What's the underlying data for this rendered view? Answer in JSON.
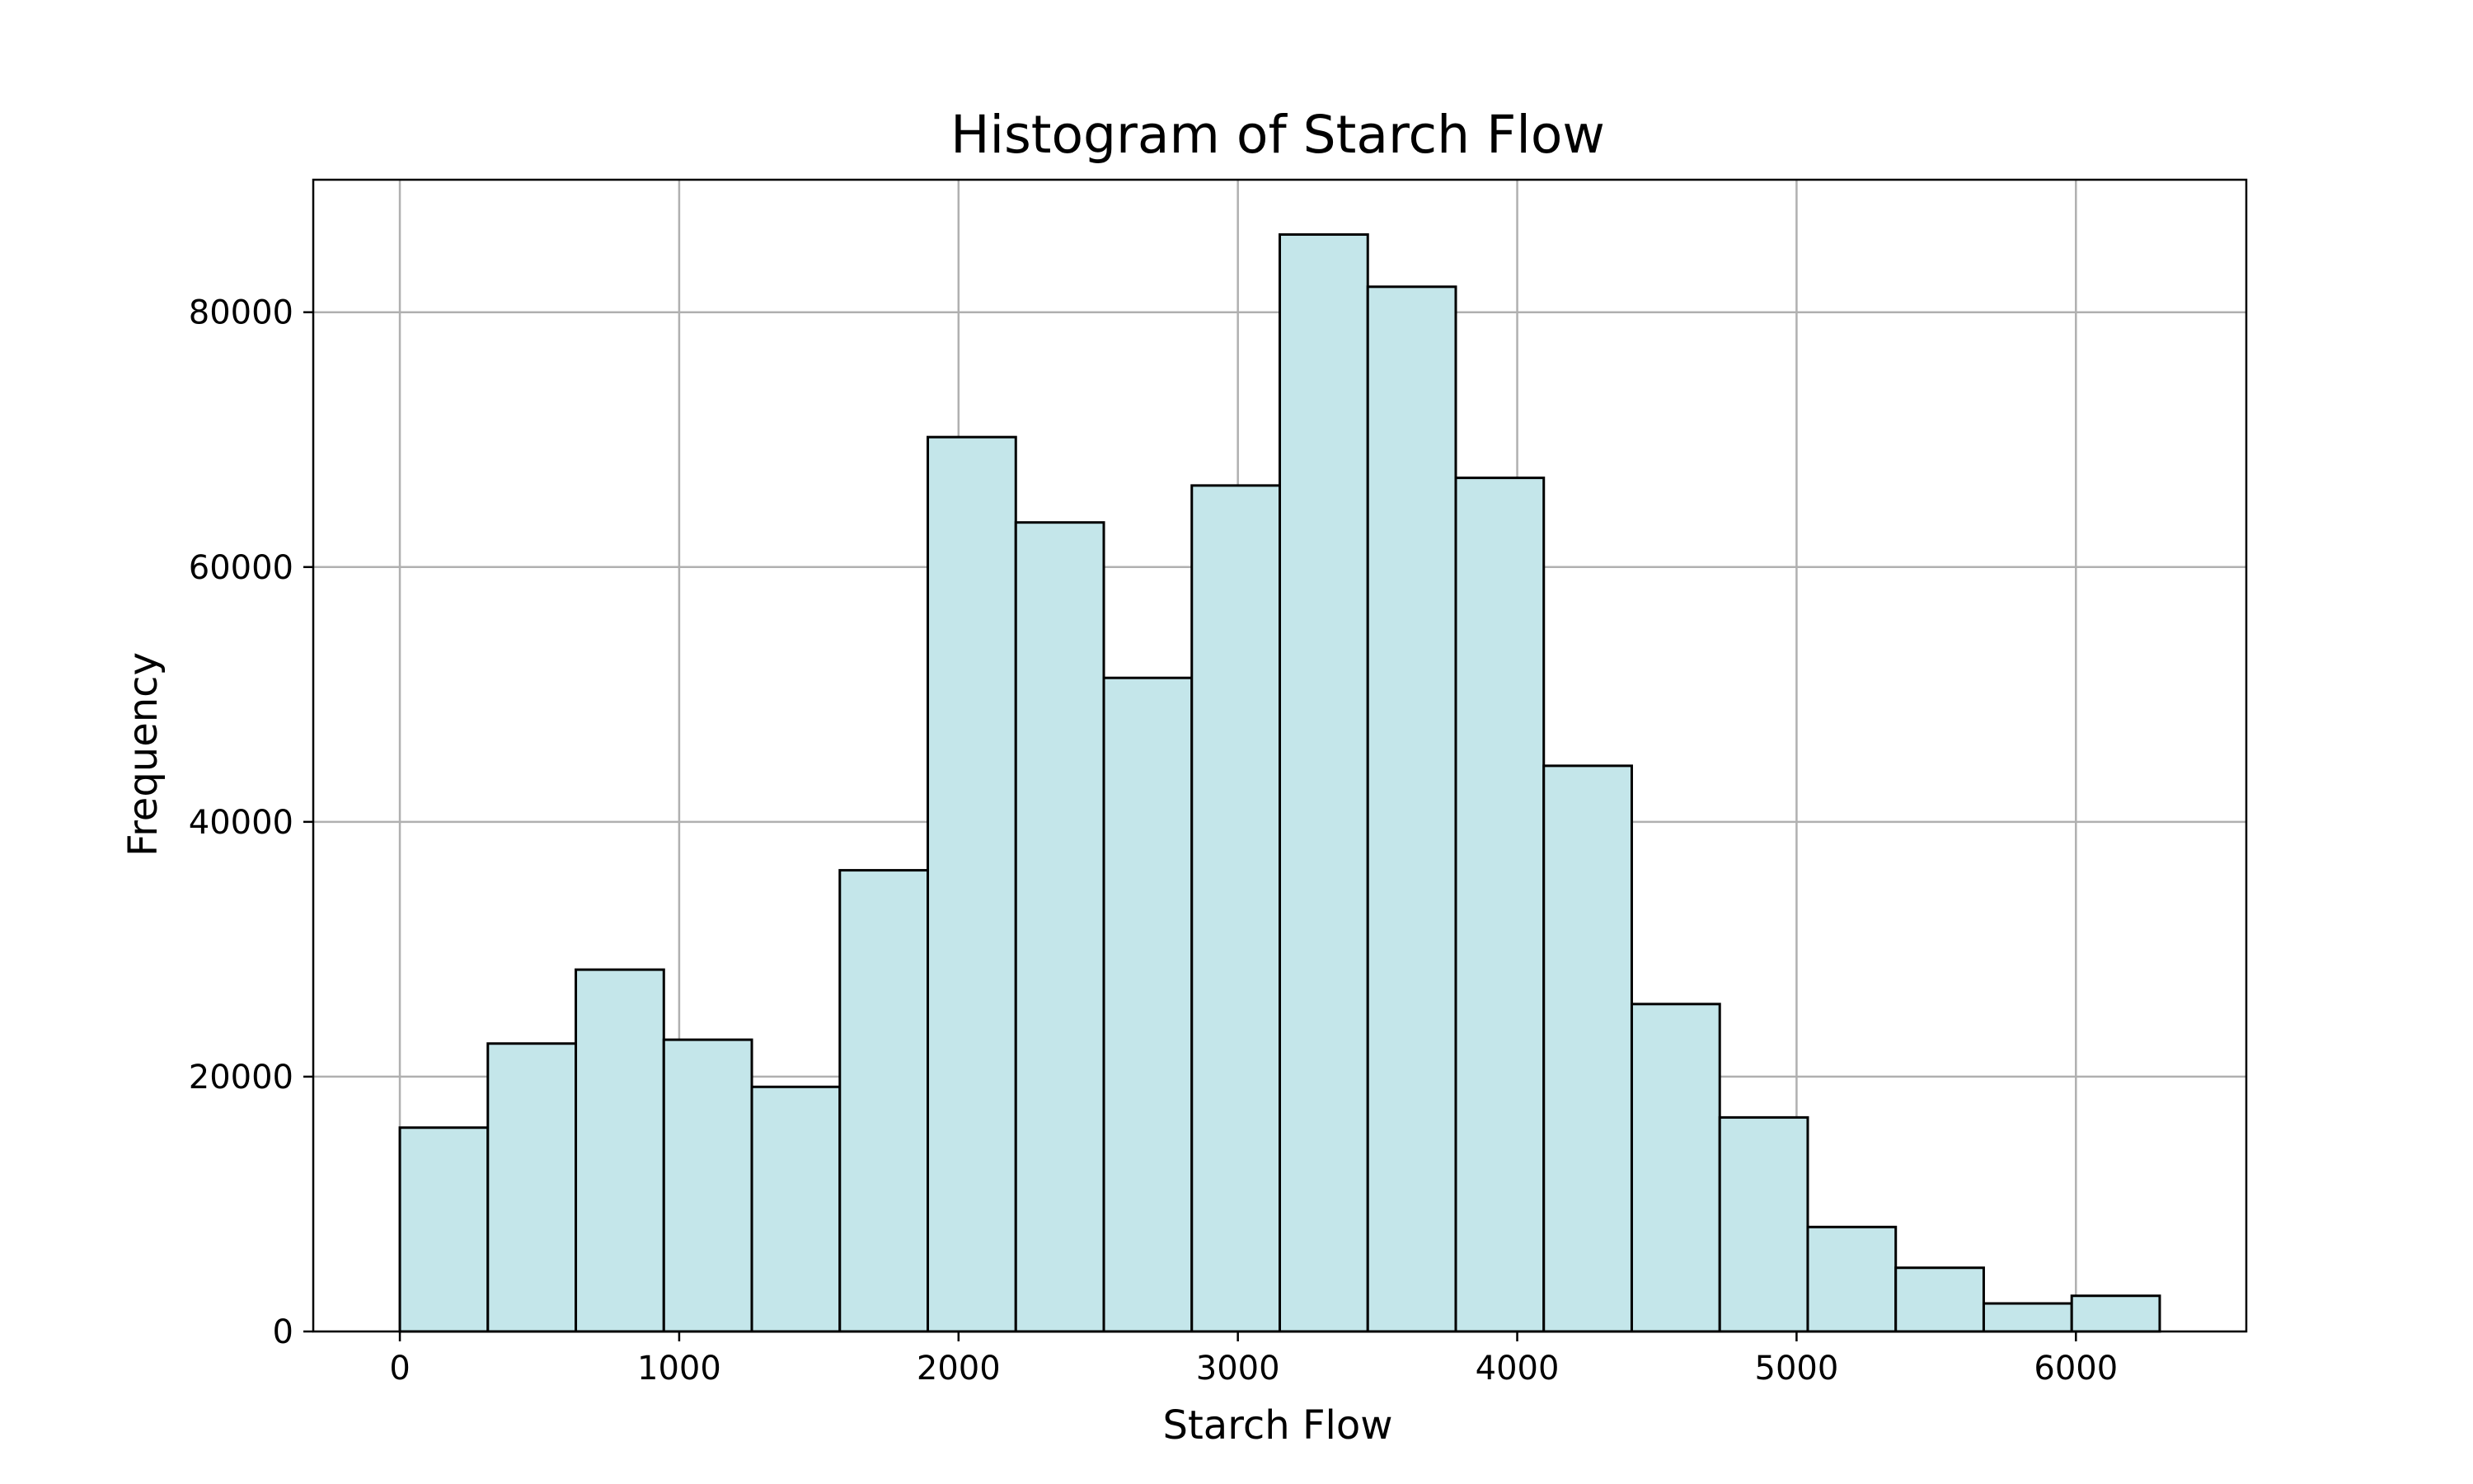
{
  "chart_data": {
    "type": "bar",
    "title": "Histogram of Starch Flow",
    "xlabel": "Starch Flow",
    "ylabel": "Frequency",
    "bin_edges": [
      0,
      315,
      630,
      945,
      1260,
      1575,
      1890,
      2205,
      2520,
      2835,
      3150,
      3465,
      3780,
      4095,
      4410,
      4725,
      5040,
      5355,
      5670,
      5985,
      6300
    ],
    "values": [
      16000,
      22600,
      28400,
      22900,
      19200,
      36200,
      70200,
      63500,
      51300,
      66400,
      86100,
      82000,
      67000,
      44400,
      25700,
      16800,
      8200,
      5000,
      2200,
      2800
    ],
    "xlim": [
      -310,
      6610
    ],
    "ylim": [
      0,
      90400
    ],
    "xticks": [
      0,
      1000,
      2000,
      3000,
      4000,
      5000,
      6000
    ],
    "yticks": [
      0,
      20000,
      40000,
      60000,
      80000
    ],
    "xtick_labels": [
      "0",
      "1000",
      "2000",
      "3000",
      "4000",
      "5000",
      "6000"
    ],
    "ytick_labels": [
      "0",
      "20000",
      "40000",
      "60000",
      "80000"
    ],
    "grid": true,
    "colors": {
      "bar_fill": "#c4e6ea",
      "bar_edge": "#000000",
      "grid": "#b0b0b0"
    }
  }
}
